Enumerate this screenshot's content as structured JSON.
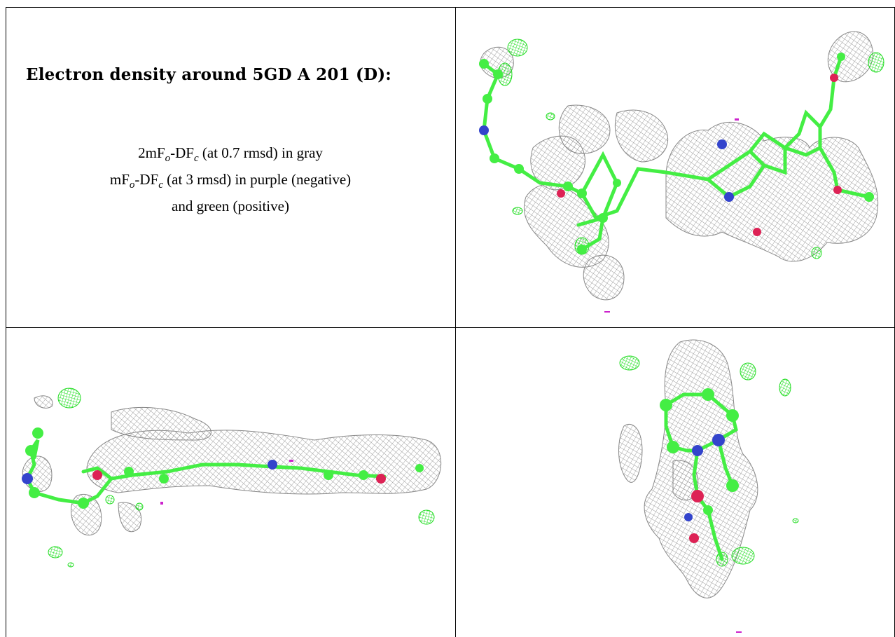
{
  "caption": {
    "title": "Electron density around 5GD A 201 (D):",
    "line1": {
      "pre": "2mF",
      "sub1": "o",
      "mid": "-DF",
      "sub2": "c",
      "post": " (at 0.7 rmsd) in gray"
    },
    "line2": {
      "pre": "mF",
      "sub1": "o",
      "mid": "-DF",
      "sub2": "c",
      "post": " (at 3 rmsd) in purple (negative)"
    },
    "line3": "and green (positive)"
  },
  "colors": {
    "mesh_gray": "#9a9a9a",
    "positive_green": "#33ee33",
    "negative_purple": "#cc22cc",
    "carbon": "#44ee44",
    "nitrogen": "#3344cc",
    "oxygen": "#dd2255"
  },
  "panels": [
    {
      "id": "top-right",
      "view": "front"
    },
    {
      "id": "bottom-left",
      "view": "side"
    },
    {
      "id": "bottom-right",
      "view": "end-on"
    }
  ]
}
